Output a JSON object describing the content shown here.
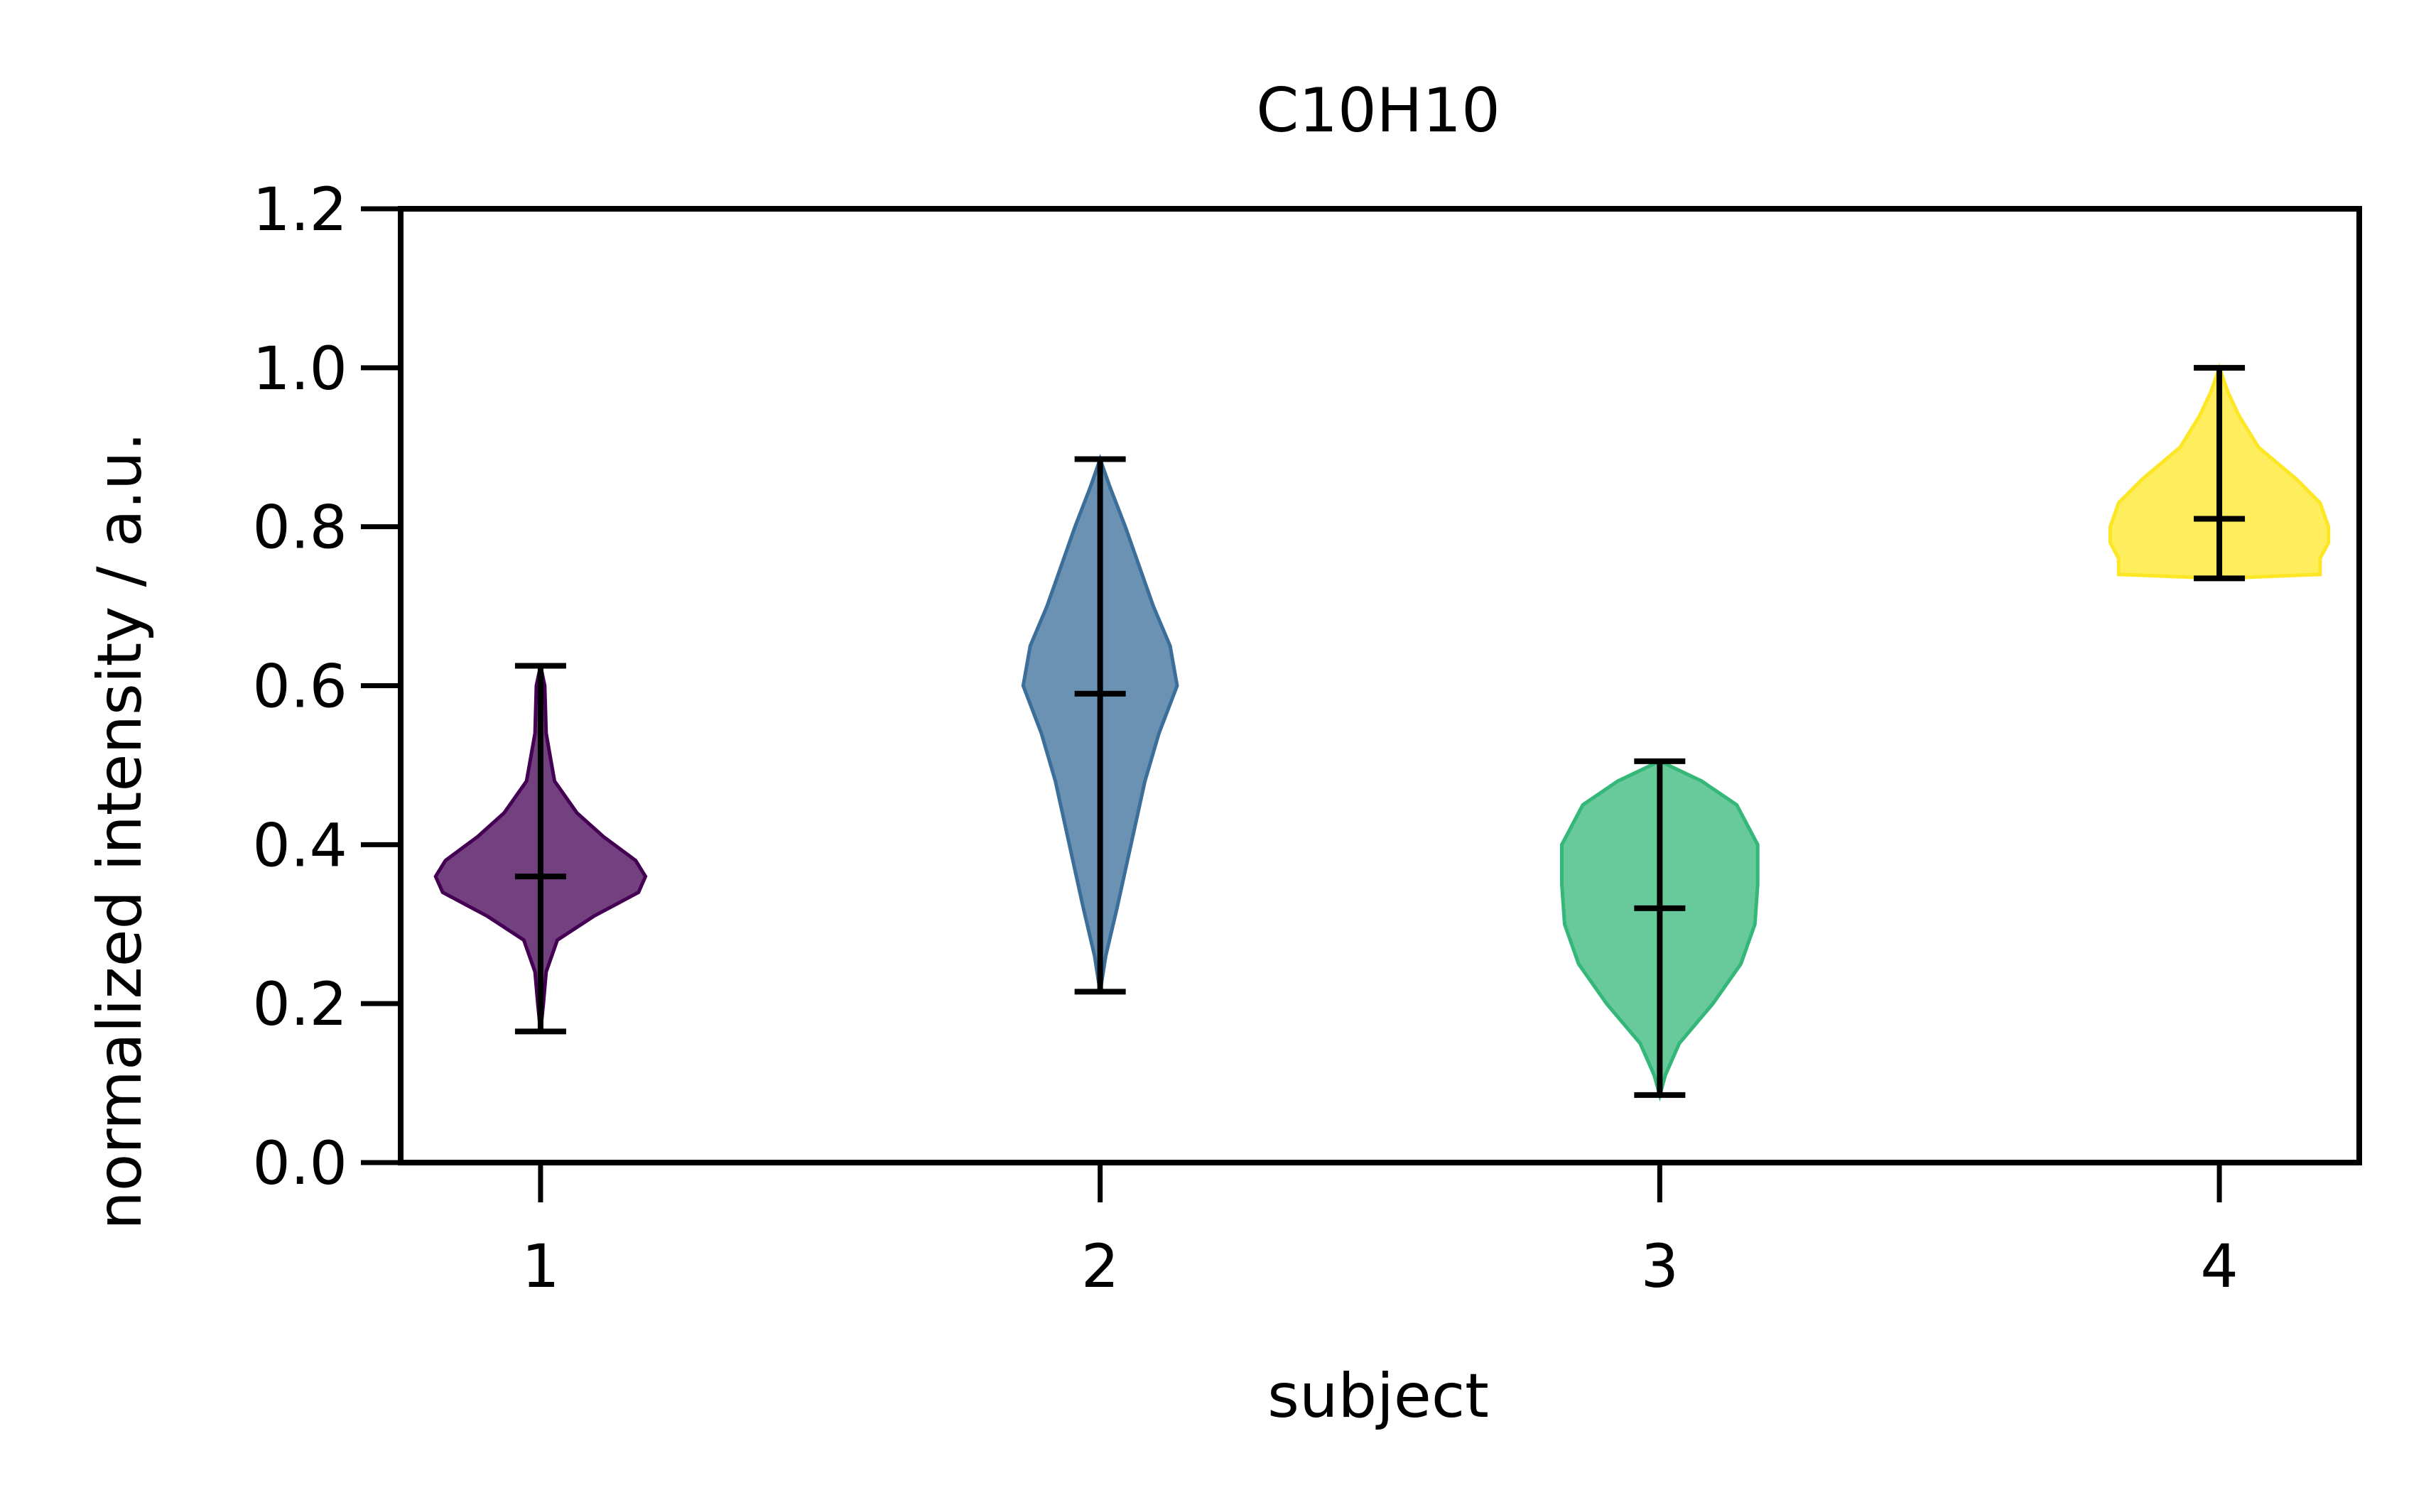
{
  "chart_data": {
    "type": "violin",
    "title": "C10H10",
    "xlabel": "subject",
    "ylabel": "normalized intensity / a.u.",
    "ylim": [
      0.0,
      1.2
    ],
    "xlim": [
      0.75,
      4.25
    ],
    "yticks": [
      "0.0",
      "0.2",
      "0.4",
      "0.6",
      "0.8",
      "1.0",
      "1.2"
    ],
    "xticks": [
      "1",
      "2",
      "3",
      "4"
    ],
    "grid": false,
    "legend": "none",
    "series": [
      {
        "x": 1,
        "min": 0.165,
        "max": 0.625,
        "median": 0.36,
        "color": "#440154",
        "profile": [
          [
            0.165,
            0.0
          ],
          [
            0.2,
            0.02
          ],
          [
            0.24,
            0.04
          ],
          [
            0.28,
            0.12
          ],
          [
            0.31,
            0.38
          ],
          [
            0.34,
            0.7
          ],
          [
            0.36,
            0.75
          ],
          [
            0.38,
            0.68
          ],
          [
            0.41,
            0.45
          ],
          [
            0.44,
            0.26
          ],
          [
            0.48,
            0.1
          ],
          [
            0.54,
            0.04
          ],
          [
            0.6,
            0.03
          ],
          [
            0.625,
            0.0
          ]
        ]
      },
      {
        "x": 2,
        "min": 0.215,
        "max": 0.885,
        "median": 0.59,
        "color": "#3b6e99",
        "profile": [
          [
            0.215,
            0.0
          ],
          [
            0.26,
            0.04
          ],
          [
            0.32,
            0.12
          ],
          [
            0.4,
            0.22
          ],
          [
            0.48,
            0.32
          ],
          [
            0.54,
            0.42
          ],
          [
            0.6,
            0.55
          ],
          [
            0.65,
            0.5
          ],
          [
            0.7,
            0.38
          ],
          [
            0.74,
            0.3
          ],
          [
            0.8,
            0.18
          ],
          [
            0.85,
            0.07
          ],
          [
            0.885,
            0.0
          ]
        ]
      },
      {
        "x": 3,
        "min": 0.085,
        "max": 0.505,
        "median": 0.32,
        "color": "#35b779",
        "profile": [
          [
            0.085,
            0.0
          ],
          [
            0.11,
            0.04
          ],
          [
            0.15,
            0.14
          ],
          [
            0.2,
            0.38
          ],
          [
            0.25,
            0.58
          ],
          [
            0.3,
            0.68
          ],
          [
            0.35,
            0.7
          ],
          [
            0.4,
            0.7
          ],
          [
            0.45,
            0.55
          ],
          [
            0.48,
            0.3
          ],
          [
            0.505,
            0.0
          ]
        ]
      },
      {
        "x": 4,
        "min": 0.735,
        "max": 1.0,
        "median": 0.81,
        "color": "#fde725",
        "profile": [
          [
            0.735,
            0.0
          ],
          [
            0.74,
            0.72
          ],
          [
            0.76,
            0.72
          ],
          [
            0.78,
            0.78
          ],
          [
            0.8,
            0.78
          ],
          [
            0.83,
            0.72
          ],
          [
            0.86,
            0.55
          ],
          [
            0.9,
            0.28
          ],
          [
            0.94,
            0.14
          ],
          [
            0.97,
            0.06
          ],
          [
            1.0,
            0.0
          ]
        ]
      }
    ]
  }
}
